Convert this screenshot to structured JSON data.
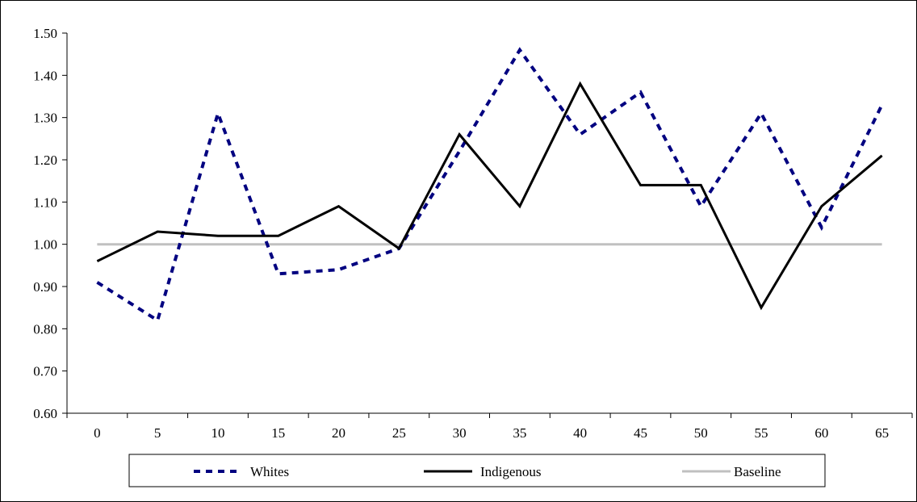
{
  "chart_data": {
    "type": "line",
    "title": "",
    "xlabel": "",
    "ylabel": "",
    "categories": [
      "0",
      "5",
      "10",
      "15",
      "20",
      "25",
      "30",
      "35",
      "40",
      "45",
      "50",
      "55",
      "60",
      "65"
    ],
    "ylim": [
      0.6,
      1.5
    ],
    "yticks": [
      "0.60",
      "0.70",
      "0.80",
      "0.90",
      "1.00",
      "1.10",
      "1.20",
      "1.30",
      "1.40",
      "1.50"
    ],
    "grid": false,
    "legend_position": "bottom",
    "series": [
      {
        "name": "Whites",
        "color": "#000080",
        "style": "dashed",
        "values": [
          0.91,
          0.82,
          1.31,
          0.93,
          0.94,
          0.99,
          1.22,
          1.46,
          1.26,
          1.36,
          1.09,
          1.31,
          1.04,
          1.33
        ]
      },
      {
        "name": "Indigenous",
        "color": "#000000",
        "style": "solid",
        "values": [
          0.96,
          1.03,
          1.02,
          1.02,
          1.09,
          0.99,
          1.26,
          1.09,
          1.38,
          1.14,
          1.14,
          0.85,
          1.09,
          1.21
        ]
      },
      {
        "name": "Baseline",
        "color": "#c0c0c0",
        "style": "solid",
        "values": [
          1.0,
          1.0,
          1.0,
          1.0,
          1.0,
          1.0,
          1.0,
          1.0,
          1.0,
          1.0,
          1.0,
          1.0,
          1.0,
          1.0
        ]
      }
    ]
  }
}
